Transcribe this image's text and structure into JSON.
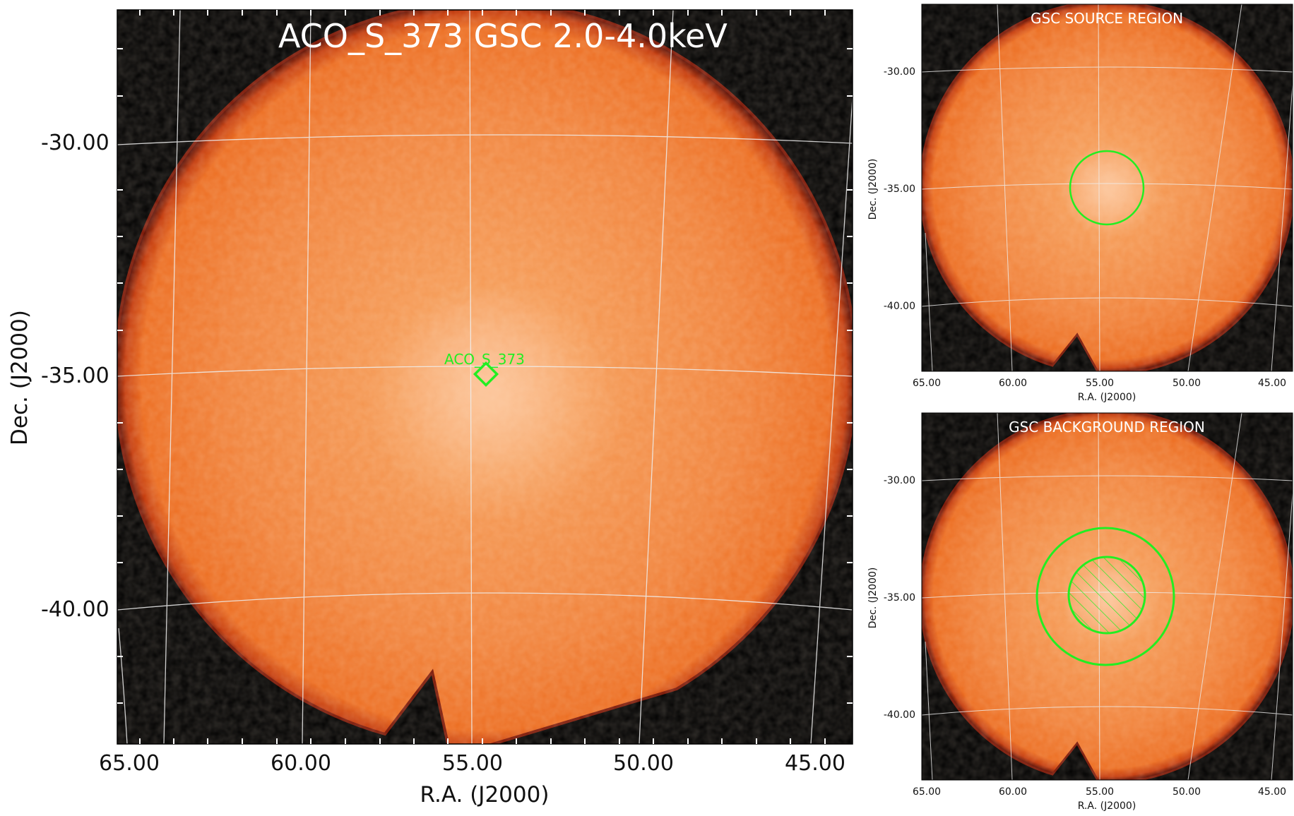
{
  "colors": {
    "background": "#000000",
    "sky_inner": "#f7a66e",
    "sky_mid": "#f28a3f",
    "sky_edge": "#e86416",
    "rim": "#8f1c06",
    "region": "#22ee22",
    "grid": "#e8e8e8"
  },
  "main_panel": {
    "title": "ACO_S_373 GSC 2.0-4.0keV",
    "source_label": "ACO_S_373",
    "xlabel": "R.A. (J2000)",
    "ylabel": "Dec. (J2000)",
    "x_ticks": [
      "65.00",
      "60.00",
      "55.00",
      "50.00",
      "45.00"
    ],
    "y_ticks": [
      "-30.00",
      "-35.00",
      "-40.00"
    ]
  },
  "source_panel": {
    "title": "GSC SOURCE REGION",
    "xlabel": "R.A. (J2000)",
    "ylabel": "Dec. (J2000)",
    "x_ticks": [
      "65.00",
      "60.00",
      "55.00",
      "50.00",
      "45.00"
    ],
    "y_ticks": [
      "-30.00",
      "-35.00",
      "-40.00"
    ]
  },
  "background_panel": {
    "title": "GSC BACKGROUND REGION",
    "xlabel": "R.A. (J2000)",
    "ylabel": "Dec. (J2000)",
    "x_ticks": [
      "65.00",
      "60.00",
      "55.00",
      "50.00",
      "45.00"
    ],
    "y_ticks": [
      "-30.00",
      "-35.00",
      "-40.00"
    ]
  }
}
